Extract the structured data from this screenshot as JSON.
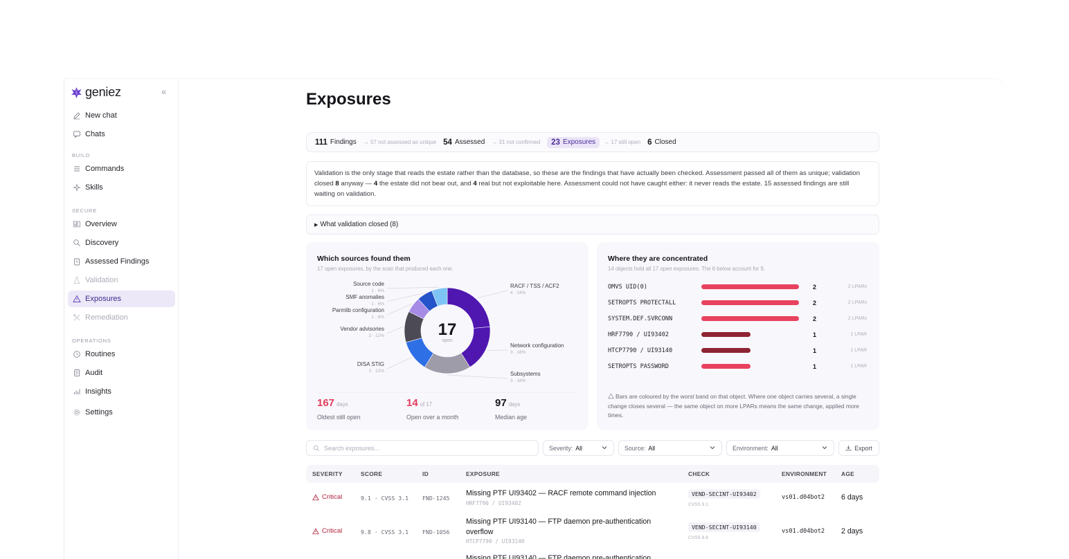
{
  "app": {
    "brand": "geniez"
  },
  "sidebar": {
    "items_top": [
      {
        "label": "New chat",
        "icon": "edit-icon"
      },
      {
        "label": "Chats",
        "icon": "chat-icon"
      }
    ],
    "groups": [
      {
        "title": "BUILD",
        "items": [
          {
            "label": "Commands",
            "icon": "list-icon"
          },
          {
            "label": "Skills",
            "icon": "sparkle-icon"
          }
        ]
      },
      {
        "title": "SECURE",
        "items": [
          {
            "label": "Overview",
            "icon": "grid-icon"
          },
          {
            "label": "Discovery",
            "icon": "search-icon"
          },
          {
            "label": "Assessed Findings",
            "icon": "clipboard-icon"
          },
          {
            "label": "Validation",
            "icon": "flask-icon",
            "disabled": true
          },
          {
            "label": "Exposures",
            "icon": "warning-icon",
            "active": true
          },
          {
            "label": "Remediation",
            "icon": "tools-icon",
            "disabled": true
          }
        ]
      },
      {
        "title": "OPERATIONS",
        "items": [
          {
            "label": "Routines",
            "icon": "clock-icon"
          },
          {
            "label": "Audit",
            "icon": "doc-icon"
          },
          {
            "label": "Insights",
            "icon": "bar-chart-icon"
          }
        ]
      }
    ],
    "settings": {
      "label": "Settings",
      "icon": "gear-icon"
    }
  },
  "page": {
    "title": "Exposures"
  },
  "pipeline": {
    "findings": {
      "num": "111",
      "label": "Findings"
    },
    "note1": "57 not assessed as unique",
    "assessed": {
      "num": "54",
      "label": "Assessed"
    },
    "note2": "31 not confirmed",
    "exposures": {
      "num": "23",
      "label": "Exposures"
    },
    "note3": "17 still open",
    "closed": {
      "num": "6",
      "label": "Closed"
    }
  },
  "note": {
    "p1": "Validation is the only stage that reads the estate rather than the database, so these are the findings that have actually been checked. Assessment passed all of them as unique; validation closed ",
    "b1": "8",
    "p2": " anyway — ",
    "b2": "4",
    "p3": " the estate did not bear out, and ",
    "b3": "4",
    "p4": " real but not exploitable here. Assessment could not have caught either: it never reads the estate. 15 assessed findings are still waiting on validation."
  },
  "details": {
    "label": "What validation closed (8)"
  },
  "sources_card": {
    "title": "Which sources found them",
    "subtitle": "17 open exposures, by the scan that produced each one.",
    "center_value": "17",
    "center_label": "open",
    "stats": [
      {
        "value": "167",
        "unit": "days",
        "caption": "Oldest still open",
        "color": "#e23b5c"
      },
      {
        "value": "14",
        "unit": "of 17",
        "caption": "Open over a month",
        "color": "#e23b5c"
      },
      {
        "value": "97",
        "unit": "days",
        "caption": "Median age",
        "color": "#16151b"
      }
    ]
  },
  "chart_data": {
    "type": "pie",
    "title": "Which sources found them",
    "total": 17,
    "slices": [
      {
        "name": "RACF / TSS / ACF2",
        "value": 4,
        "pct": "4 · 24%",
        "color": "#4f17b0"
      },
      {
        "name": "Network configuration",
        "value": 3,
        "pct": "3 · 18%",
        "color": "#4f17b0"
      },
      {
        "name": "Subsystems",
        "value": 3,
        "pct": "3 · 18%",
        "color": "#9e9ca8"
      },
      {
        "name": "DISA STIG",
        "value": 2,
        "pct": "2 · 12%",
        "color": "#2f6fe6"
      },
      {
        "name": "Vendor advisories",
        "value": 2,
        "pct": "2 · 12%",
        "color": "#4c4a55"
      },
      {
        "name": "Parmlib configuration",
        "value": 1,
        "pct": "1 · 6%",
        "color": "#a58ae6"
      },
      {
        "name": "SMF anomalies",
        "value": 1,
        "pct": "1 · 6%",
        "color": "#2553c9"
      },
      {
        "name": "Source code",
        "value": 1,
        "pct": "1 · 6%",
        "color": "#7ec4f5"
      }
    ]
  },
  "concentration_card": {
    "title": "Where they are concentrated",
    "subtitle": "14 objects hold all 17 open exposures. The 6 below account for 9.",
    "rows": [
      {
        "object": "OMVS UID(0)",
        "count": 2,
        "lpars": "2 LPARs",
        "fraction": 0.94,
        "color": "#e8425f"
      },
      {
        "object": "SETROPTS PROTECTALL",
        "count": 2,
        "lpars": "2 LPARs",
        "fraction": 0.94,
        "color": "#e8425f"
      },
      {
        "object": "SYSTEM.DEF.SVRCONN",
        "count": 2,
        "lpars": "2 LPARs",
        "fraction": 0.94,
        "color": "#e8425f"
      },
      {
        "object": "HRF7790 / UI93402",
        "count": 1,
        "lpars": "1 LPAR",
        "fraction": 0.47,
        "color": "#8e2333"
      },
      {
        "object": "HTCP7790 / UI93140",
        "count": 1,
        "lpars": "1 LPAR",
        "fraction": 0.47,
        "color": "#8e2333"
      },
      {
        "object": "SETROPTS PASSWORD",
        "count": 1,
        "lpars": "1 LPAR",
        "fraction": 0.47,
        "color": "#e8425f"
      }
    ],
    "footnote": "Bars are coloured by the worst band on that object. Where one object carries several, a single change closes several — the same object on more LPARs means the same change, applied more times."
  },
  "filters": {
    "search_placeholder": "Search exposures...",
    "severity": {
      "label": "Severity:",
      "value": "All"
    },
    "source": {
      "label": "Source:",
      "value": "All"
    },
    "environment": {
      "label": "Environment:",
      "value": "All"
    },
    "export": "Export"
  },
  "table": {
    "headers": [
      "SEVERITY",
      "SCORE",
      "ID",
      "EXPOSURE",
      "CHECK",
      "ENVIRONMENT",
      "AGE"
    ],
    "rows": [
      {
        "severity": "Critical",
        "score": "9.1 · CVSS 3.1",
        "id": "FND-1245",
        "title": "Missing PTF UI93402 — RACF remote command injection",
        "sub": "HRF7790 / UI93402",
        "check": "VEND-SECINT-UI93402",
        "check_sub": "CVSS 9.1",
        "env": "vs01.d04bot2",
        "age": "6 days"
      },
      {
        "severity": "Critical",
        "score": "9.8 · CVSS 3.1",
        "id": "FND-1056",
        "title": "Missing PTF UI93140 — FTP daemon pre-authentication overflow",
        "sub": "HTCP7790 / UI93140",
        "check": "VEND-SECINT-UI93140",
        "check_sub": "CVSS 9.8",
        "env": "vs01.d04bot2",
        "age": "2 days"
      },
      {
        "title": "Missing PTF UI93140 — FTP daemon pre-authentication"
      }
    ]
  }
}
